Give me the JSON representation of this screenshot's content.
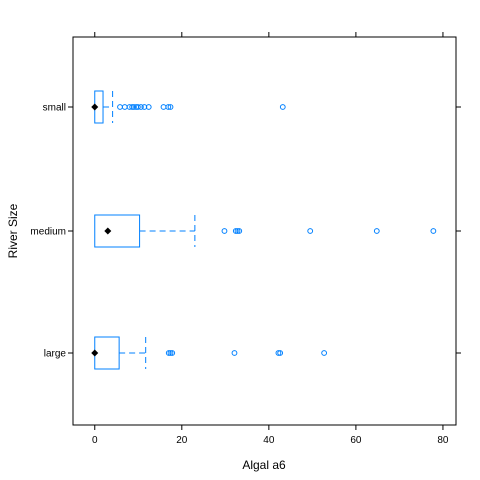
{
  "chart_data": {
    "type": "boxplot",
    "orientation": "horizontal",
    "xlabel": "Algal  a6",
    "ylabel": "River Size",
    "xlim": [
      -5,
      83
    ],
    "xticks": [
      0,
      20,
      40,
      60,
      80
    ],
    "grid": false,
    "colors": {
      "box": "#0080ff",
      "median": "#000000",
      "frame": "#000000"
    },
    "categories": [
      "large",
      "medium",
      "small"
    ],
    "groups": [
      {
        "name": "large",
        "min": 0,
        "q1": 0,
        "median": 0,
        "q3": 5.6,
        "max": 11.7,
        "outliers": [
          17.0,
          17.4,
          17.8,
          32.1,
          42.2,
          42.6,
          52.7
        ]
      },
      {
        "name": "medium",
        "min": 0,
        "q1": 0,
        "median": 3.0,
        "q3": 10.3,
        "max": 23.0,
        "outliers": [
          29.8,
          32.4,
          32.8,
          33.2,
          49.5,
          64.8,
          77.8
        ]
      },
      {
        "name": "small",
        "min": 0,
        "q1": 0,
        "median": 0,
        "q3": 1.9,
        "max": 4.1,
        "outliers": [
          5.8,
          6.9,
          8.0,
          8.6,
          9.0,
          9.5,
          9.9,
          10.6,
          11.4,
          12.4,
          15.8,
          16.9,
          17.4,
          43.2
        ]
      }
    ]
  }
}
